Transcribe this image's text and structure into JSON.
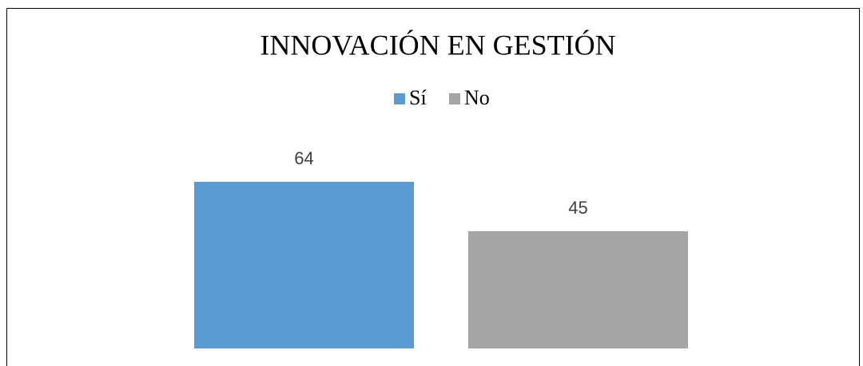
{
  "chart_data": {
    "type": "bar",
    "title": "INNOVACIÓN EN GESTIÓN",
    "categories": [
      null
    ],
    "series": [
      {
        "name": "Sí",
        "color": "#5b9bd5",
        "values": [
          64
        ]
      },
      {
        "name": "No",
        "color": "#a5a5a5",
        "values": [
          45
        ]
      }
    ],
    "legend": "top"
  }
}
